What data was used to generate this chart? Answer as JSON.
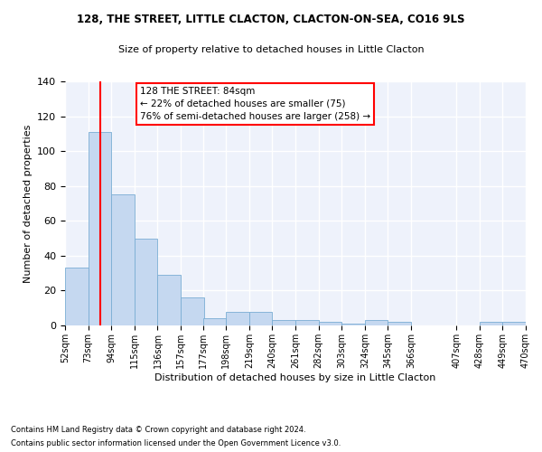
{
  "title1": "128, THE STREET, LITTLE CLACTON, CLACTON-ON-SEA, CO16 9LS",
  "title2": "Size of property relative to detached houses in Little Clacton",
  "xlabel": "Distribution of detached houses by size in Little Clacton",
  "ylabel": "Number of detached properties",
  "bar_color": "#c5d8f0",
  "bar_edge_color": "#7aadd4",
  "bins_values": [
    33,
    111,
    75,
    50,
    29,
    16,
    4,
    8,
    8,
    3,
    3,
    2,
    1,
    3,
    2,
    0,
    0,
    0,
    2,
    2
  ],
  "bin_left_edges": [
    52,
    73,
    94,
    115,
    136,
    157,
    177,
    198,
    219,
    240,
    261,
    282,
    303,
    324,
    345,
    366,
    386,
    407,
    428,
    449
  ],
  "bin_width": 21,
  "x_labels": [
    "52sqm",
    "73sqm",
    "94sqm",
    "115sqm",
    "136sqm",
    "157sqm",
    "177sqm",
    "198sqm",
    "219sqm",
    "240sqm",
    "261sqm",
    "282sqm",
    "303sqm",
    "324sqm",
    "345sqm",
    "366sqm",
    "407sqm",
    "428sqm",
    "449sqm",
    "470sqm"
  ],
  "x_tick_positions": [
    52,
    73,
    94,
    115,
    136,
    157,
    177,
    198,
    219,
    240,
    261,
    282,
    303,
    324,
    345,
    366,
    407,
    428,
    449,
    470
  ],
  "xlim": [
    52,
    470
  ],
  "red_line_x": 84,
  "annotation_text": "128 THE STREET: 84sqm\n← 22% of detached houses are smaller (75)\n76% of semi-detached houses are larger (258) →",
  "annotation_box_color": "white",
  "annotation_box_edge": "red",
  "ylim": [
    0,
    140
  ],
  "yticks": [
    0,
    20,
    40,
    60,
    80,
    100,
    120,
    140
  ],
  "background_color": "#eef2fb",
  "grid_color": "white",
  "footer1": "Contains HM Land Registry data © Crown copyright and database right 2024.",
  "footer2": "Contains public sector information licensed under the Open Government Licence v3.0."
}
